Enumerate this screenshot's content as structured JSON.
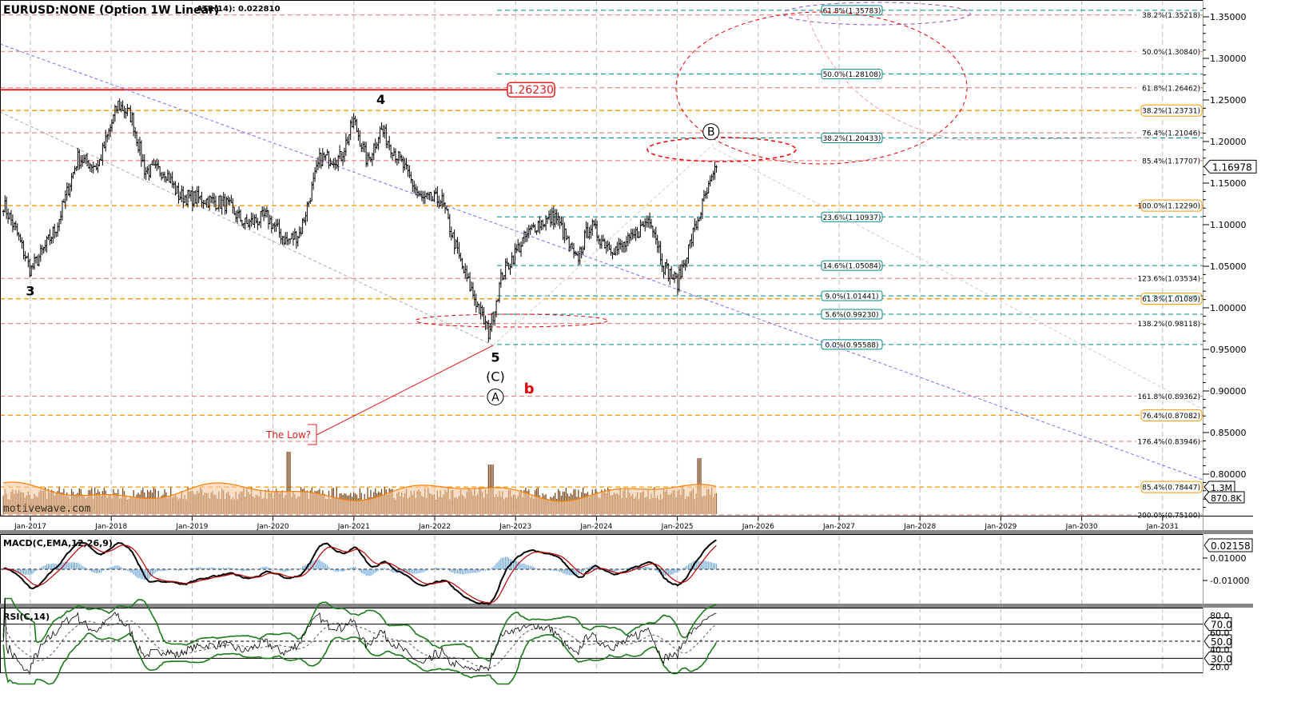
{
  "header": {
    "title": "EURUSD:NONE (Option 1W Linear)",
    "atr": "ATR(14): 0.022810",
    "watermark": "motivewave.com"
  },
  "chart_data": {
    "type": "ohlc",
    "symbol": "EURUSD",
    "timeframe": "1W",
    "ylim": [
      0.75,
      1.37
    ],
    "x_ticks": [
      "Jan-2017",
      "Jan-2018",
      "Jan-2019",
      "Jan-2020",
      "Jan-2021",
      "Jan-2022",
      "Jan-2023",
      "Jan-2024",
      "Jan-2025",
      "Jan-2026",
      "Jan-2027",
      "Jan-2028",
      "Jan-2029",
      "Jan-2030",
      "Jan-2031"
    ],
    "y_ticks": [
      "0.80000",
      "0.85000",
      "0.90000",
      "0.95000",
      "1.00000",
      "1.05000",
      "1.10000",
      "1.15000",
      "1.20000",
      "1.25000",
      "1.30000",
      "1.35000"
    ],
    "y_tick_values": [
      0.8,
      0.85,
      0.9,
      0.95,
      1.0,
      1.05,
      1.1,
      1.15,
      1.2,
      1.25,
      1.3,
      1.35
    ],
    "last_price": "1.16978",
    "volume_labels": [
      "1.3M",
      "870.8K"
    ],
    "price_path": [
      [
        "2016-09",
        1.125
      ],
      [
        "2016-11",
        1.09
      ],
      [
        "2017-01",
        1.045
      ],
      [
        "2017-03",
        1.07
      ],
      [
        "2017-05",
        1.1
      ],
      [
        "2017-08",
        1.18
      ],
      [
        "2017-11",
        1.17
      ],
      [
        "2018-02",
        1.245
      ],
      [
        "2018-04",
        1.23
      ],
      [
        "2018-06",
        1.165
      ],
      [
        "2018-09",
        1.165
      ],
      [
        "2018-11",
        1.135
      ],
      [
        "2019-03",
        1.13
      ],
      [
        "2019-06",
        1.125
      ],
      [
        "2019-09",
        1.1
      ],
      [
        "2019-12",
        1.11
      ],
      [
        "2020-03",
        1.08
      ],
      [
        "2020-05",
        1.09
      ],
      [
        "2020-08",
        1.18
      ],
      [
        "2020-11",
        1.18
      ],
      [
        "2021-01",
        1.225
      ],
      [
        "2021-03",
        1.175
      ],
      [
        "2021-05",
        1.215
      ],
      [
        "2021-08",
        1.175
      ],
      [
        "2021-11",
        1.13
      ],
      [
        "2022-02",
        1.13
      ],
      [
        "2022-05",
        1.05
      ],
      [
        "2022-07",
        1.01
      ],
      [
        "2022-09",
        0.97
      ],
      [
        "2022-11",
        1.04
      ],
      [
        "2023-02",
        1.08
      ],
      [
        "2023-04",
        1.1
      ],
      [
        "2023-07",
        1.11
      ],
      [
        "2023-10",
        1.055
      ],
      [
        "2023-12",
        1.1
      ],
      [
        "2024-02",
        1.08
      ],
      [
        "2024-04",
        1.07
      ],
      [
        "2024-06",
        1.08
      ],
      [
        "2024-09",
        1.11
      ],
      [
        "2024-11",
        1.05
      ],
      [
        "2025-01",
        1.03
      ],
      [
        "2025-03",
        1.08
      ],
      [
        "2025-05",
        1.13
      ],
      [
        "2025-07",
        1.17
      ]
    ],
    "resistance": {
      "value": 1.2623,
      "label": "1.26230",
      "color": "#e02020"
    },
    "fib_levels": [
      {
        "label": "38.2%(1.35218)",
        "value": 1.35218,
        "group": "red"
      },
      {
        "label": "50.0%(1.30840)",
        "value": 1.3084,
        "group": "red"
      },
      {
        "label": "61.8%(1.26462)",
        "value": 1.26462,
        "group": "red"
      },
      {
        "label": "76.4%(1.21046)",
        "value": 1.21046,
        "group": "red"
      },
      {
        "label": "85.4%(1.17707)",
        "value": 1.17707,
        "group": "red"
      },
      {
        "label": "123.6%(1.03534)",
        "value": 1.03534,
        "group": "red"
      },
      {
        "label": "138.2%(0.98118)",
        "value": 0.98118,
        "group": "red"
      },
      {
        "label": "161.8%(0.89362)",
        "value": 0.89362,
        "group": "red"
      },
      {
        "label": "176.4%(0.83946)",
        "value": 0.83946,
        "group": "red"
      },
      {
        "label": "200.0%(0.75100)",
        "value": 0.751,
        "group": "red"
      },
      {
        "label": "38.2%(1.23731)",
        "value": 1.23731,
        "group": "orange"
      },
      {
        "label": "100.0%(1.12290)",
        "value": 1.1229,
        "group": "orange"
      },
      {
        "label": "61.8%(1.01089)",
        "value": 1.01089,
        "group": "orange"
      },
      {
        "label": "76.4%(0.87082)",
        "value": 0.87082,
        "group": "orange"
      },
      {
        "label": "85.4%(0.78447)",
        "value": 0.78447,
        "group": "orange"
      },
      {
        "label": "61.8%(1.35783)",
        "value": 1.35783,
        "group": "teal"
      },
      {
        "label": "50.0%(1.28108)",
        "value": 1.28108,
        "group": "teal"
      },
      {
        "label": "38.2%(1.20433)",
        "value": 1.20433,
        "group": "teal"
      },
      {
        "label": "23.6%(1.10937)",
        "value": 1.10937,
        "group": "teal"
      },
      {
        "label": "14.6%(1.05084)",
        "value": 1.05084,
        "group": "teal"
      },
      {
        "label": "9.0%(1.01441)",
        "value": 1.01441,
        "group": "teal"
      },
      {
        "label": "5.6%(0.99230)",
        "value": 0.9923,
        "group": "teal"
      },
      {
        "label": "0.0%(0.95588)",
        "value": 0.95588,
        "group": "teal"
      }
    ],
    "wave_labels": [
      {
        "text": "3",
        "date": "2017-01",
        "price": 1.015,
        "color": "#000",
        "style": "plain"
      },
      {
        "text": "4",
        "date": "2021-05",
        "price": 1.245,
        "color": "#000",
        "style": "plain"
      },
      {
        "text": "5",
        "date": "2022-10",
        "price": 0.935,
        "color": "#000",
        "style": "plain"
      },
      {
        "text": "(C)",
        "date": "2022-10",
        "price": 0.912,
        "color": "#000",
        "style": "plain"
      },
      {
        "text": "A",
        "date": "2022-10",
        "price": 0.888,
        "color": "#000",
        "style": "circle"
      },
      {
        "text": "b",
        "date": "2023-03",
        "price": 0.897,
        "color": "#e00000",
        "style": "plain"
      },
      {
        "text": "B",
        "date": "2025-06",
        "price": 1.207,
        "color": "#000",
        "style": "circle"
      }
    ],
    "annotation": {
      "text": "The Low?",
      "color": "#e02020"
    },
    "colors": {
      "red": "#e87070",
      "orange": "#ff9900",
      "teal": "#008b8b",
      "purple": "#8a4fc0",
      "trend_blue": "#7070ff",
      "volume": "#7a4a20",
      "volume_ma": "#ff7f00"
    },
    "macd": {
      "title": "MACD(C,EMA,12,26,9)",
      "last": "0.02158",
      "ticks": [
        "0.01000",
        "-0.01000"
      ],
      "tick_values": [
        0.01,
        -0.01
      ]
    },
    "rsi": {
      "title": "RSI(C,14)",
      "ticks": [
        "80.0",
        "60.0",
        "40.0",
        "20.0"
      ],
      "tick_values": [
        80,
        60,
        40,
        20
      ],
      "levels": [
        "70.0",
        "50.0",
        "30.0"
      ],
      "level_values": [
        70,
        50,
        30
      ]
    }
  }
}
